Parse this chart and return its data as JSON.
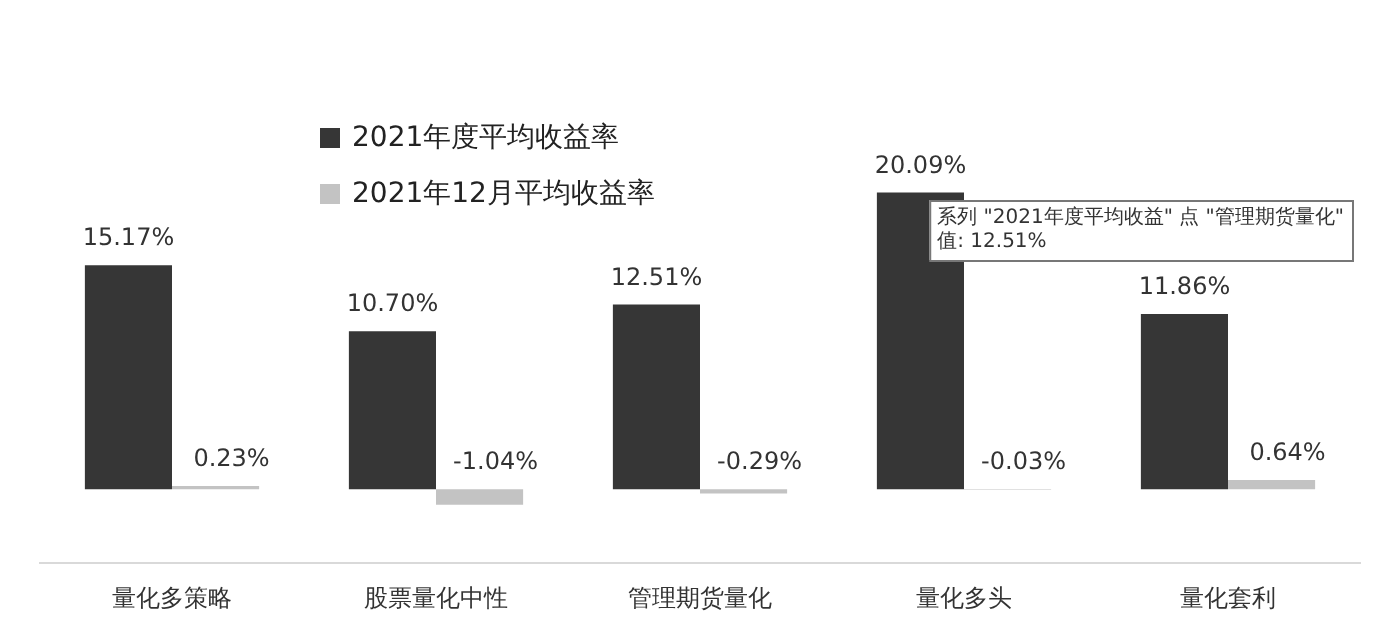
{
  "chart_data": {
    "type": "bar",
    "categories": [
      "量化多策略",
      "股票量化中性",
      "管理期货量化",
      "量化多头",
      "量化套利"
    ],
    "series": [
      {
        "name": "2021年度平均收益率",
        "color": "#363636",
        "values": [
          15.17,
          10.7,
          12.51,
          20.09,
          11.86
        ],
        "value_labels": [
          "15.17%",
          "10.70%",
          "12.51%",
          "20.09%",
          "11.86%"
        ]
      },
      {
        "name": "2021年12月平均收益率",
        "color": "#c3c3c3",
        "values": [
          0.23,
          -1.04,
          -0.29,
          -0.03,
          0.64
        ],
        "value_labels": [
          "0.23%",
          "-1.04%",
          "-0.29%",
          "-0.03%",
          "0.64%"
        ]
      }
    ],
    "tick_labels": "x",
    "grid": false,
    "legend": "top",
    "annotations": [
      "系列 \"2021年度平均收益\" 点 \"管理期货量化\"\n值: 12.51%"
    ]
  }
}
